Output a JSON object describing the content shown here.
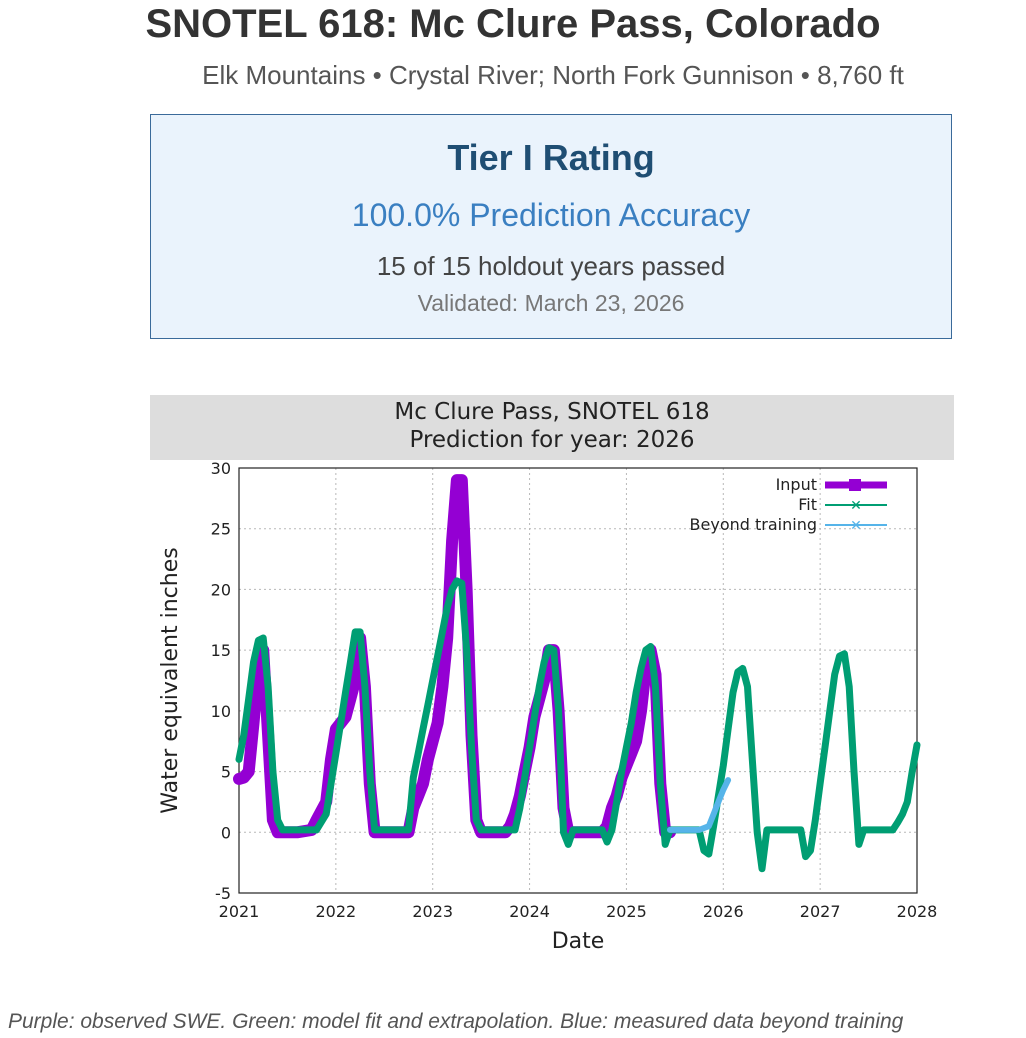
{
  "header": {
    "title": "SNOTEL 618: Mc Clure Pass, Colorado",
    "subtitle": "Elk Mountains • Crystal River; North Fork Gunnison • 8,760 ft"
  },
  "rating": {
    "title": "Tier I Rating",
    "accuracy": "100.0% Prediction Accuracy",
    "holdout": "15 of 15 holdout years passed",
    "validated": "Validated: March 23, 2026"
  },
  "caption": "Purple: observed SWE. Green: model fit and extrapolation. Blue: measured data beyond training",
  "chart_data": {
    "type": "line",
    "title": "Mc Clure Pass, SNOTEL 618",
    "subtitle": "Prediction for year: 2026",
    "xlabel": "Date",
    "ylabel": "Water equivalent inches",
    "xlim": [
      2021,
      2028
    ],
    "ylim": [
      -5,
      30
    ],
    "x_ticks": [
      "2021",
      "2022",
      "2023",
      "2024",
      "2025",
      "2026",
      "2027",
      "2028"
    ],
    "y_ticks": [
      "-5",
      "0",
      "5",
      "10",
      "15",
      "20",
      "25",
      "30"
    ],
    "grid": true,
    "legend_position": "top-right",
    "series": [
      {
        "name": "Input",
        "color": "#9400d3",
        "points": [
          [
            2021.0,
            4.4
          ],
          [
            2021.05,
            4.5
          ],
          [
            2021.1,
            5.0
          ],
          [
            2021.15,
            9.0
          ],
          [
            2021.2,
            13.5
          ],
          [
            2021.25,
            15.0
          ],
          [
            2021.3,
            8.0
          ],
          [
            2021.35,
            1.0
          ],
          [
            2021.4,
            0.0
          ],
          [
            2021.6,
            0.0
          ],
          [
            2021.75,
            0.2
          ],
          [
            2021.8,
            1.0
          ],
          [
            2021.9,
            2.5
          ],
          [
            2021.95,
            6.0
          ],
          [
            2022.0,
            8.5
          ],
          [
            2022.05,
            9.0
          ],
          [
            2022.1,
            9.5
          ],
          [
            2022.15,
            11.0
          ],
          [
            2022.2,
            12.5
          ],
          [
            2022.25,
            16.0
          ],
          [
            2022.3,
            12.0
          ],
          [
            2022.35,
            4.0
          ],
          [
            2022.4,
            0.0
          ],
          [
            2022.75,
            0.0
          ],
          [
            2022.8,
            2.0
          ],
          [
            2022.85,
            3.0
          ],
          [
            2022.9,
            4.0
          ],
          [
            2022.95,
            6.0
          ],
          [
            2023.0,
            7.5
          ],
          [
            2023.05,
            9.0
          ],
          [
            2023.1,
            12.0
          ],
          [
            2023.15,
            16.0
          ],
          [
            2023.2,
            24.0
          ],
          [
            2023.25,
            29.0
          ],
          [
            2023.3,
            29.0
          ],
          [
            2023.35,
            20.0
          ],
          [
            2023.4,
            8.0
          ],
          [
            2023.45,
            1.0
          ],
          [
            2023.5,
            0.0
          ],
          [
            2023.75,
            0.0
          ],
          [
            2023.8,
            0.5
          ],
          [
            2023.85,
            1.5
          ],
          [
            2023.9,
            3.0
          ],
          [
            2023.95,
            5.0
          ],
          [
            2024.0,
            7.0
          ],
          [
            2024.05,
            9.5
          ],
          [
            2024.1,
            11.0
          ],
          [
            2024.15,
            12.5
          ],
          [
            2024.2,
            15.0
          ],
          [
            2024.25,
            15.0
          ],
          [
            2024.3,
            10.0
          ],
          [
            2024.35,
            2.0
          ],
          [
            2024.4,
            0.0
          ],
          [
            2024.75,
            0.0
          ],
          [
            2024.8,
            0.5
          ],
          [
            2024.85,
            2.0
          ],
          [
            2024.9,
            3.0
          ],
          [
            2024.95,
            4.5
          ],
          [
            2025.0,
            5.5
          ],
          [
            2025.05,
            6.5
          ],
          [
            2025.1,
            7.5
          ],
          [
            2025.15,
            10.0
          ],
          [
            2025.2,
            13.5
          ],
          [
            2025.25,
            15.0
          ],
          [
            2025.3,
            13.0
          ],
          [
            2025.35,
            4.0
          ],
          [
            2025.4,
            0.0
          ],
          [
            2025.45,
            0.0
          ]
        ]
      },
      {
        "name": "Fit",
        "color": "#009e73",
        "points": [
          [
            2021.0,
            6.0
          ],
          [
            2021.05,
            8.0
          ],
          [
            2021.1,
            11.0
          ],
          [
            2021.15,
            14.0
          ],
          [
            2021.2,
            15.8
          ],
          [
            2021.25,
            16.0
          ],
          [
            2021.3,
            12.0
          ],
          [
            2021.35,
            5.0
          ],
          [
            2021.4,
            1.0
          ],
          [
            2021.45,
            0.2
          ],
          [
            2021.8,
            0.2
          ],
          [
            2021.9,
            1.5
          ],
          [
            2021.95,
            4.0
          ],
          [
            2022.0,
            6.5
          ],
          [
            2022.05,
            9.0
          ],
          [
            2022.1,
            11.5
          ],
          [
            2022.15,
            14.0
          ],
          [
            2022.2,
            16.5
          ],
          [
            2022.25,
            16.5
          ],
          [
            2022.3,
            12.0
          ],
          [
            2022.35,
            5.0
          ],
          [
            2022.4,
            0.2
          ],
          [
            2022.75,
            0.2
          ],
          [
            2022.8,
            4.5
          ],
          [
            2022.85,
            6.5
          ],
          [
            2022.9,
            8.5
          ],
          [
            2022.95,
            10.5
          ],
          [
            2023.0,
            12.5
          ],
          [
            2023.05,
            14.5
          ],
          [
            2023.1,
            16.5
          ],
          [
            2023.15,
            18.5
          ],
          [
            2023.2,
            20.0
          ],
          [
            2023.25,
            20.7
          ],
          [
            2023.3,
            20.5
          ],
          [
            2023.35,
            15.0
          ],
          [
            2023.4,
            7.0
          ],
          [
            2023.45,
            1.0
          ],
          [
            2023.5,
            0.2
          ],
          [
            2023.85,
            0.2
          ],
          [
            2023.9,
            2.0
          ],
          [
            2023.95,
            4.5
          ],
          [
            2024.0,
            7.0
          ],
          [
            2024.05,
            9.5
          ],
          [
            2024.1,
            12.0
          ],
          [
            2024.15,
            14.0
          ],
          [
            2024.2,
            15.2
          ],
          [
            2024.25,
            15.0
          ],
          [
            2024.3,
            10.0
          ],
          [
            2024.35,
            0.0
          ],
          [
            2024.4,
            -1.0
          ],
          [
            2024.45,
            0.2
          ],
          [
            2024.75,
            0.2
          ],
          [
            2024.8,
            -0.8
          ],
          [
            2024.85,
            0.2
          ],
          [
            2024.9,
            2.5
          ],
          [
            2024.95,
            5.0
          ],
          [
            2025.0,
            7.0
          ],
          [
            2025.05,
            9.0
          ],
          [
            2025.1,
            11.5
          ],
          [
            2025.15,
            13.5
          ],
          [
            2025.2,
            15.0
          ],
          [
            2025.25,
            15.3
          ],
          [
            2025.3,
            12.0
          ],
          [
            2025.35,
            4.0
          ],
          [
            2025.4,
            -1.0
          ],
          [
            2025.45,
            0.2
          ],
          [
            2025.75,
            0.2
          ],
          [
            2025.8,
            -1.5
          ],
          [
            2025.85,
            -1.8
          ],
          [
            2025.9,
            0.5
          ],
          [
            2025.95,
            3.0
          ],
          [
            2026.0,
            5.5
          ],
          [
            2026.05,
            8.5
          ],
          [
            2026.1,
            11.5
          ],
          [
            2026.15,
            13.2
          ],
          [
            2026.2,
            13.5
          ],
          [
            2026.25,
            12.0
          ],
          [
            2026.3,
            6.0
          ],
          [
            2026.35,
            0.0
          ],
          [
            2026.4,
            -3.0
          ],
          [
            2026.45,
            0.2
          ],
          [
            2026.8,
            0.2
          ],
          [
            2026.85,
            -2.0
          ],
          [
            2026.9,
            -1.5
          ],
          [
            2026.95,
            1.0
          ],
          [
            2027.0,
            4.0
          ],
          [
            2027.05,
            7.0
          ],
          [
            2027.1,
            10.0
          ],
          [
            2027.15,
            13.0
          ],
          [
            2027.2,
            14.5
          ],
          [
            2027.25,
            14.7
          ],
          [
            2027.3,
            12.0
          ],
          [
            2027.35,
            5.0
          ],
          [
            2027.4,
            -1.0
          ],
          [
            2027.45,
            0.2
          ],
          [
            2027.75,
            0.2
          ],
          [
            2027.8,
            0.8
          ],
          [
            2027.85,
            1.5
          ],
          [
            2027.9,
            2.5
          ],
          [
            2027.95,
            5.0
          ],
          [
            2028.0,
            7.2
          ]
        ]
      },
      {
        "name": "Beyond training",
        "color": "#56b4e9",
        "points": [
          [
            2025.45,
            0.2
          ],
          [
            2025.55,
            0.2
          ],
          [
            2025.65,
            0.2
          ],
          [
            2025.75,
            0.2
          ],
          [
            2025.85,
            0.5
          ],
          [
            2025.9,
            1.5
          ],
          [
            2025.95,
            2.5
          ],
          [
            2026.0,
            3.5
          ],
          [
            2026.05,
            4.3
          ]
        ]
      }
    ]
  }
}
